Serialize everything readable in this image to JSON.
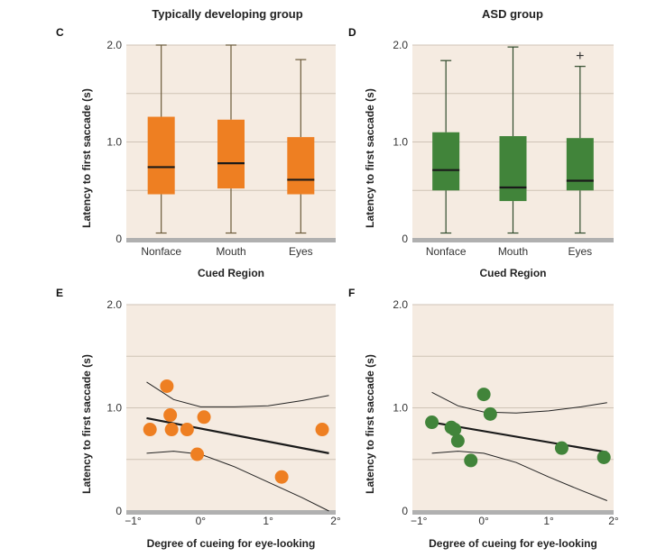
{
  "colors": {
    "panel_bg": "#f5ebe1",
    "grid": "#cfc3b6",
    "axis_bar": "#b0b0b0",
    "orange": "#ee7f22",
    "green": "#41843a",
    "whisker_orange": "#6b5a3a",
    "whisker_green": "#2f4a2b",
    "median": "#1a1a1a",
    "fit_line": "#1a1a1a"
  },
  "chart_data": [
    {
      "panel": "C",
      "type": "box",
      "title": "Typically developing group",
      "xlabel": "Cued Region",
      "ylabel": "Latency to first saccade (s)",
      "ylim": [
        0,
        2.0
      ],
      "yticks": [
        {
          "v": 0,
          "label": "0"
        },
        {
          "v": 1.0,
          "label": "1.0"
        },
        {
          "v": 2.0,
          "label": "2.0"
        }
      ],
      "gridlines": [
        0.5,
        1.0,
        1.5,
        2.0
      ],
      "color": "orange",
      "categories": [
        "Nonface",
        "Mouth",
        "Eyes"
      ],
      "boxes": [
        {
          "min": 0.06,
          "q1": 0.46,
          "median": 0.74,
          "q3": 1.26,
          "max": 2.0
        },
        {
          "min": 0.06,
          "q1": 0.52,
          "median": 0.78,
          "q3": 1.23,
          "max": 2.0
        },
        {
          "min": 0.06,
          "q1": 0.46,
          "median": 0.61,
          "q3": 1.05,
          "max": 1.85
        }
      ],
      "outliers": []
    },
    {
      "panel": "D",
      "type": "box",
      "title": "ASD group",
      "xlabel": "Cued Region",
      "ylabel": "Latency to first saccade (s)",
      "ylim": [
        0,
        2.0
      ],
      "yticks": [
        {
          "v": 0,
          "label": "0"
        },
        {
          "v": 1.0,
          "label": "1.0"
        },
        {
          "v": 2.0,
          "label": "2.0"
        }
      ],
      "gridlines": [
        0.5,
        1.0,
        1.5,
        2.0
      ],
      "color": "green",
      "categories": [
        "Nonface",
        "Mouth",
        "Eyes"
      ],
      "boxes": [
        {
          "min": 0.06,
          "q1": 0.5,
          "median": 0.71,
          "q3": 1.1,
          "max": 1.84
        },
        {
          "min": 0.06,
          "q1": 0.39,
          "median": 0.53,
          "q3": 1.06,
          "max": 1.98
        },
        {
          "min": 0.06,
          "q1": 0.5,
          "median": 0.6,
          "q3": 1.04,
          "max": 1.78
        }
      ],
      "outliers": [
        {
          "category": 2,
          "value": 1.9,
          "marker": "+"
        }
      ]
    },
    {
      "panel": "E",
      "type": "scatter",
      "xlabel": "Degree of cueing for eye-looking",
      "ylabel": "Latency to first saccade (s)",
      "xlim": [
        -1.1,
        2.0
      ],
      "ylim": [
        0,
        2.0
      ],
      "xticks": [
        {
          "v": -1,
          "label": "−1°"
        },
        {
          "v": 0,
          "label": "0°"
        },
        {
          "v": 1,
          "label": "1°"
        },
        {
          "v": 2,
          "label": "2°"
        }
      ],
      "yticks": [
        {
          "v": 0,
          "label": "0"
        },
        {
          "v": 1.0,
          "label": "1.0"
        },
        {
          "v": 2.0,
          "label": "2.0"
        }
      ],
      "gridlines": [
        0.5,
        1.0,
        1.5,
        2.0
      ],
      "color": "orange",
      "x": [
        -0.75,
        -0.5,
        -0.45,
        -0.43,
        -0.2,
        -0.05,
        0.05,
        1.2,
        1.8
      ],
      "y": [
        0.79,
        1.21,
        0.93,
        0.79,
        0.79,
        0.55,
        0.91,
        0.33,
        0.79
      ],
      "fit": {
        "x": [
          -0.8,
          1.9
        ],
        "y": [
          0.9,
          0.56
        ]
      },
      "ci_upper": {
        "x": [
          -0.8,
          -0.4,
          0.0,
          0.5,
          1.0,
          1.5,
          1.9
        ],
        "y": [
          1.25,
          1.08,
          1.01,
          1.01,
          1.02,
          1.07,
          1.12
        ]
      },
      "ci_lower": {
        "x": [
          -0.8,
          -0.4,
          0.0,
          0.5,
          1.0,
          1.5,
          1.9
        ],
        "y": [
          0.56,
          0.58,
          0.55,
          0.43,
          0.28,
          0.13,
          0.0
        ]
      }
    },
    {
      "panel": "F",
      "type": "scatter",
      "xlabel": "Degree of cueing for eye-looking",
      "ylabel": "Latency to first saccade (s)",
      "xlim": [
        -1.1,
        2.0
      ],
      "ylim": [
        0,
        2.0
      ],
      "xticks": [
        {
          "v": -1,
          "label": "−1°"
        },
        {
          "v": 0,
          "label": "0°"
        },
        {
          "v": 1,
          "label": "1°"
        },
        {
          "v": 2,
          "label": "2°"
        }
      ],
      "yticks": [
        {
          "v": 0,
          "label": "0"
        },
        {
          "v": 1.0,
          "label": "1.0"
        },
        {
          "v": 2.0,
          "label": "2.0"
        }
      ],
      "gridlines": [
        0.5,
        1.0,
        1.5,
        2.0
      ],
      "color": "green",
      "x": [
        -0.8,
        -0.5,
        -0.45,
        -0.4,
        -0.2,
        0.0,
        0.1,
        1.2,
        1.85
      ],
      "y": [
        0.86,
        0.81,
        0.79,
        0.68,
        0.49,
        1.13,
        0.94,
        0.61,
        0.52
      ],
      "fit": {
        "x": [
          -0.8,
          1.9
        ],
        "y": [
          0.86,
          0.57
        ]
      },
      "ci_upper": {
        "x": [
          -0.8,
          -0.4,
          0.0,
          0.5,
          1.0,
          1.5,
          1.9
        ],
        "y": [
          1.15,
          1.02,
          0.96,
          0.95,
          0.97,
          1.01,
          1.05
        ]
      },
      "ci_lower": {
        "x": [
          -0.8,
          -0.4,
          0.0,
          0.5,
          1.0,
          1.5,
          1.9
        ],
        "y": [
          0.56,
          0.58,
          0.56,
          0.47,
          0.33,
          0.2,
          0.1
        ]
      }
    }
  ]
}
